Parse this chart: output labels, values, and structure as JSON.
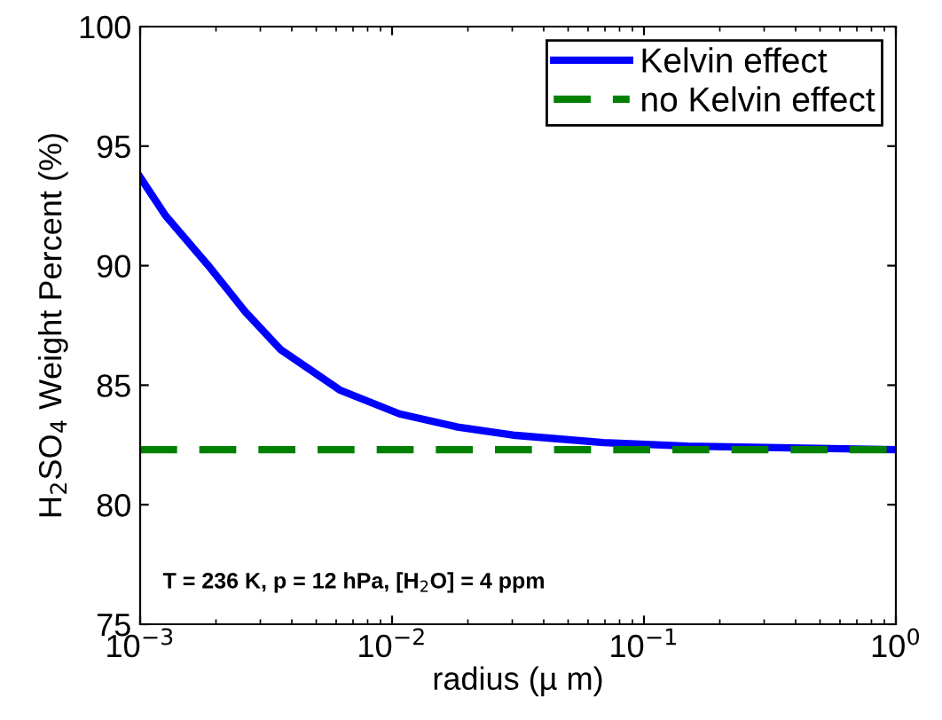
{
  "chart_data": {
    "type": "line",
    "xlabel": "radius (µ m)",
    "ylabel": "H$_{2}$SO$_{4}$ Weight Percent (%)",
    "log": "x",
    "xlim": [
      0.001,
      1
    ],
    "ylim": [
      75,
      100
    ],
    "xticks": [
      {
        "value": 0.001,
        "label": "10$^{−3}$"
      },
      {
        "value": 0.01,
        "label": "10$^{−2}$"
      },
      {
        "value": 0.1,
        "label": "10$^{−1}$"
      },
      {
        "value": 1,
        "label": "10$^{0}$"
      }
    ],
    "yticks": [
      75,
      80,
      85,
      90,
      95,
      100
    ],
    "grid": false,
    "legend": "top right",
    "line_style": "solid",
    "marker": "none",
    "series": [
      {
        "name": "Kelvin effect",
        "color": "#0000ff",
        "x": [
          0.001,
          0.00126,
          0.0019,
          0.0026,
          0.0036,
          0.0062,
          0.0107,
          0.0182,
          0.031,
          0.069,
          0.15,
          1
        ],
        "values": [
          93.7,
          92.1,
          89.9,
          88.1,
          86.5,
          84.8,
          83.8,
          83.25,
          82.9,
          82.6,
          82.45,
          82.3
        ]
      },
      {
        "name": "no Kelvin effect",
        "color": "#008000",
        "line_style": "dashed",
        "x": [
          0.001,
          1
        ],
        "values": [
          82.3,
          82.3
        ]
      }
    ],
    "annotations": [
      "T = 236 K, p = 12 hPa, [H$_{2}$O] = 4 ppm"
    ]
  }
}
